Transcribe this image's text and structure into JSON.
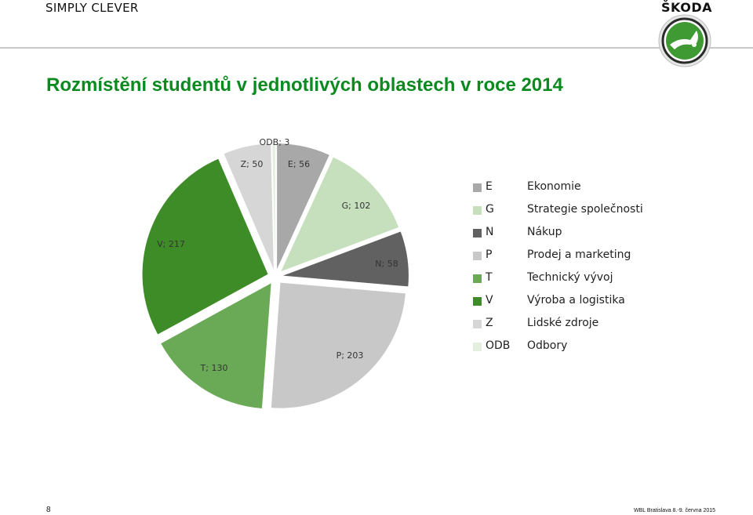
{
  "header": {
    "brand_left": "SIMPLY CLEVER",
    "brand_right": "ŠKODA"
  },
  "title": "Rozmístění studentů v jednotlivých oblastech v roce 2014",
  "chart_data": {
    "type": "pie",
    "slices": [
      {
        "code": "E",
        "label": "E; 56",
        "value": 56,
        "color": "#a8a8a8"
      },
      {
        "code": "G",
        "label": "G; 102",
        "value": 102,
        "color": "#c6e0bd"
      },
      {
        "code": "N",
        "label": "N; 58",
        "value": 58,
        "color": "#616161"
      },
      {
        "code": "P",
        "label": "P; 203",
        "value": 203,
        "color": "#c8c8c8"
      },
      {
        "code": "T",
        "label": "T; 130",
        "value": 130,
        "color": "#6aaa57"
      },
      {
        "code": "V",
        "label": "V; 217",
        "value": 217,
        "color": "#3e8c28"
      },
      {
        "code": "Z",
        "label": "Z; 50",
        "value": 50,
        "color": "#d6d6d6"
      },
      {
        "code": "ODB",
        "label": "ODB; 3",
        "value": 3,
        "color": "#e4efe0"
      }
    ]
  },
  "legend": [
    {
      "code": "E",
      "name": "Ekonomie",
      "color": "#a8a8a8"
    },
    {
      "code": "G",
      "name": "Strategie společnosti",
      "color": "#c6e0bd"
    },
    {
      "code": "N",
      "name": "Nákup",
      "color": "#616161"
    },
    {
      "code": "P",
      "name": "Prodej a marketing",
      "color": "#c8c8c8"
    },
    {
      "code": "T",
      "name": "Technický vývoj",
      "color": "#6aaa57"
    },
    {
      "code": "V",
      "name": "Výroba a logistika",
      "color": "#3e8c28"
    },
    {
      "code": "Z",
      "name": "Lidské zdroje",
      "color": "#d6d6d6"
    },
    {
      "code": "ODB",
      "name": "Odbory",
      "color": "#e4efe0"
    }
  ],
  "footer": {
    "page_number": "8",
    "note": "WBL Bratislava 8.-9. června 2015"
  }
}
